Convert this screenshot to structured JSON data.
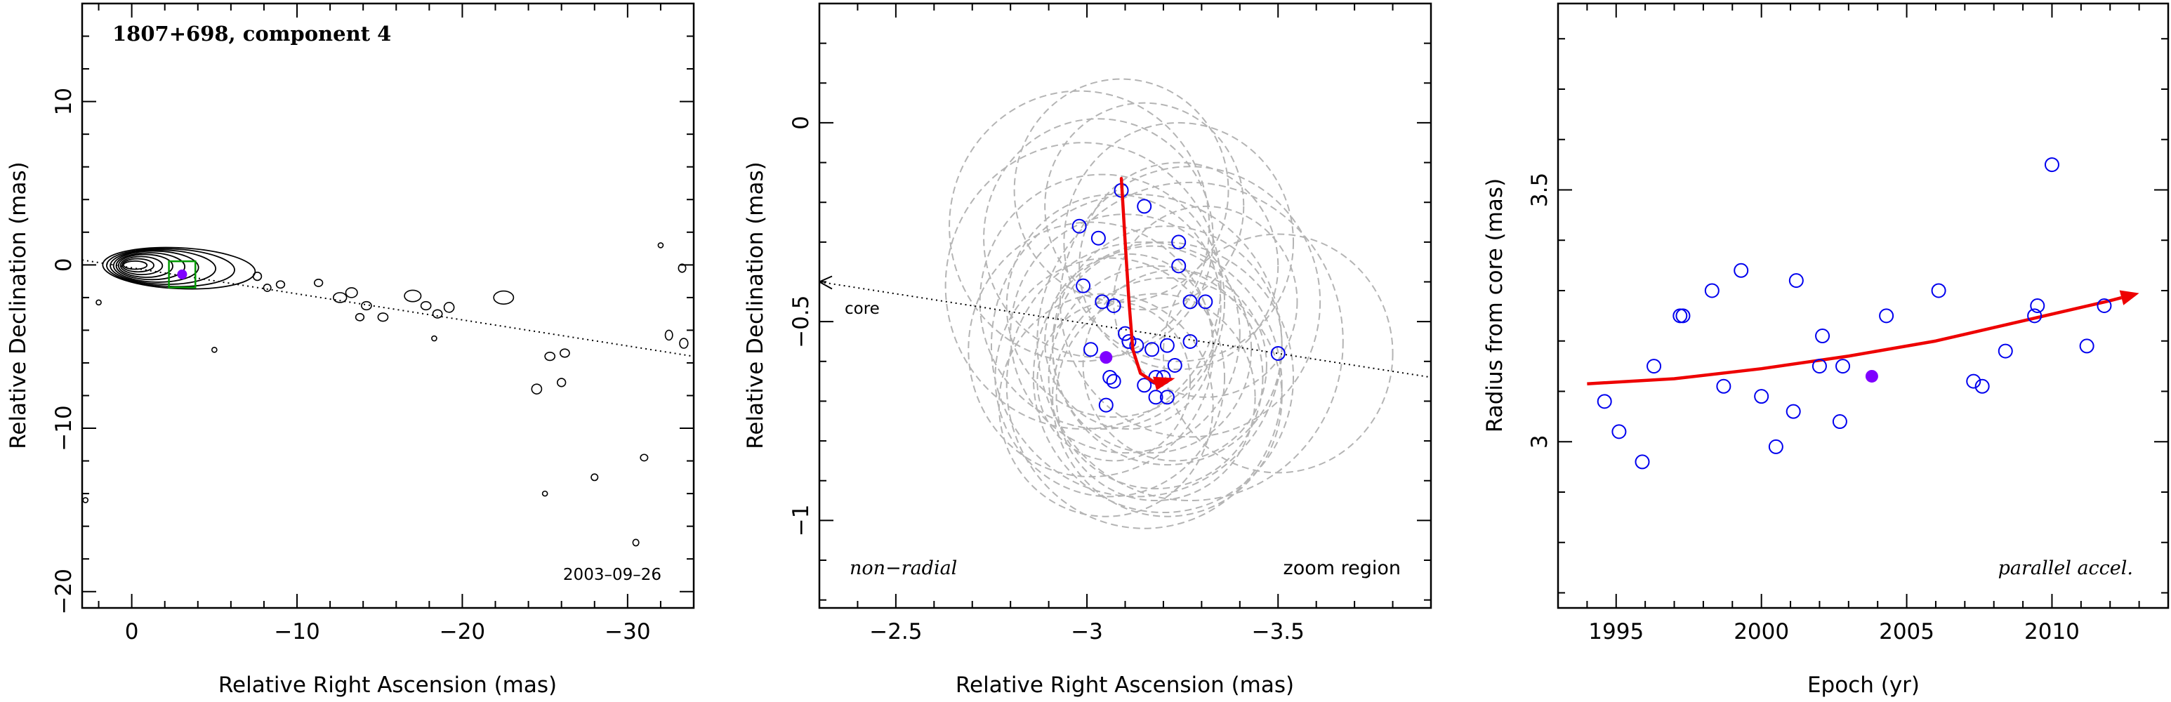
{
  "chart_data": [
    {
      "type": "contour",
      "title": "1807+698, component 4",
      "date_label": "2003–09–26",
      "xlabel": "Relative Right Ascension (mas)",
      "ylabel": "Relative Declination (mas)",
      "xlim": [
        3,
        -34
      ],
      "ylim": [
        -21,
        16
      ],
      "xticks": [
        0,
        -10,
        -20,
        -30
      ],
      "yticks": [
        -20,
        -10,
        0,
        10
      ],
      "tick_labels_x": [
        "0",
        "−10",
        "−20",
        "−30"
      ],
      "tick_labels_y": [
        "−20",
        "−10",
        "0",
        "10"
      ],
      "jet_axis": [
        [
          3,
          0.3
        ],
        [
          -34,
          -5.6
        ]
      ],
      "component": {
        "x": -3.05,
        "y": -0.58
      },
      "colors": {
        "contour": "#000000",
        "box": "#009900",
        "component": "#7f00ff",
        "axis_line": "#000000"
      }
    },
    {
      "type": "scatter",
      "xlabel": "Relative Right Ascension (mas)",
      "ylabel": "Relative Declination (mas)",
      "xlim": [
        -2.3,
        -3.9
      ],
      "ylim": [
        -1.22,
        0.3
      ],
      "xticks": [
        -2.5,
        -3,
        -3.5
      ],
      "yticks": [
        -1,
        -0.5,
        0
      ],
      "tick_labels_x": [
        "−2.5",
        "−3",
        "−3.5"
      ],
      "tick_labels_y": [
        "−1",
        "−0.5",
        "0"
      ],
      "label_core": "core",
      "label_motion": "non−radial",
      "label_region": "zoom region",
      "core_axis": [
        [
          -2.3,
          -0.4
        ],
        [
          -3.9,
          -0.64
        ]
      ],
      "mean_position": {
        "x": -3.05,
        "y": -0.59
      },
      "points": [
        {
          "x": -2.98,
          "y": -0.26
        },
        {
          "x": -3.03,
          "y": -0.29
        },
        {
          "x": -3.09,
          "y": -0.17
        },
        {
          "x": -3.15,
          "y": -0.21
        },
        {
          "x": -3.24,
          "y": -0.3
        },
        {
          "x": -3.24,
          "y": -0.36
        },
        {
          "x": -2.99,
          "y": -0.41
        },
        {
          "x": -3.04,
          "y": -0.45
        },
        {
          "x": -3.07,
          "y": -0.46
        },
        {
          "x": -3.27,
          "y": -0.45
        },
        {
          "x": -3.31,
          "y": -0.45
        },
        {
          "x": -3.1,
          "y": -0.53
        },
        {
          "x": -3.11,
          "y": -0.55
        },
        {
          "x": -3.13,
          "y": -0.56
        },
        {
          "x": -3.17,
          "y": -0.57
        },
        {
          "x": -3.21,
          "y": -0.56
        },
        {
          "x": -3.27,
          "y": -0.55
        },
        {
          "x": -3.01,
          "y": -0.57
        },
        {
          "x": -3.18,
          "y": -0.64
        },
        {
          "x": -3.2,
          "y": -0.64
        },
        {
          "x": -3.23,
          "y": -0.61
        },
        {
          "x": -3.06,
          "y": -0.64
        },
        {
          "x": -3.07,
          "y": -0.65
        },
        {
          "x": -3.15,
          "y": -0.66
        },
        {
          "x": -3.18,
          "y": -0.69
        },
        {
          "x": -3.21,
          "y": -0.69
        },
        {
          "x": -3.05,
          "y": -0.71
        },
        {
          "x": -3.5,
          "y": -0.58
        }
      ],
      "error_circles": [
        {
          "x": -2.98,
          "y": -0.26,
          "r": 0.34
        },
        {
          "x": -3.03,
          "y": -0.29,
          "r": 0.3
        },
        {
          "x": -3.09,
          "y": -0.17,
          "r": 0.28
        },
        {
          "x": -3.15,
          "y": -0.21,
          "r": 0.26
        },
        {
          "x": -3.24,
          "y": -0.3,
          "r": 0.3
        },
        {
          "x": -3.24,
          "y": -0.36,
          "r": 0.26
        },
        {
          "x": -2.99,
          "y": -0.41,
          "r": 0.36
        },
        {
          "x": -3.04,
          "y": -0.45,
          "r": 0.32
        },
        {
          "x": -3.07,
          "y": -0.46,
          "r": 0.28
        },
        {
          "x": -3.27,
          "y": -0.45,
          "r": 0.34
        },
        {
          "x": -3.31,
          "y": -0.45,
          "r": 0.24
        },
        {
          "x": -3.1,
          "y": -0.53,
          "r": 0.3
        },
        {
          "x": -3.11,
          "y": -0.55,
          "r": 0.22
        },
        {
          "x": -3.13,
          "y": -0.56,
          "r": 0.38
        },
        {
          "x": -3.17,
          "y": -0.57,
          "r": 0.26
        },
        {
          "x": -3.21,
          "y": -0.56,
          "r": 0.3
        },
        {
          "x": -3.27,
          "y": -0.55,
          "r": 0.4
        },
        {
          "x": -3.01,
          "y": -0.57,
          "r": 0.32
        },
        {
          "x": -3.18,
          "y": -0.64,
          "r": 0.28
        },
        {
          "x": -3.2,
          "y": -0.64,
          "r": 0.34
        },
        {
          "x": -3.23,
          "y": -0.61,
          "r": 0.24
        },
        {
          "x": -3.06,
          "y": -0.64,
          "r": 0.3
        },
        {
          "x": -3.07,
          "y": -0.65,
          "r": 0.2
        },
        {
          "x": -3.15,
          "y": -0.66,
          "r": 0.36
        },
        {
          "x": -3.18,
          "y": -0.69,
          "r": 0.26
        },
        {
          "x": -3.21,
          "y": -0.69,
          "r": 0.3
        },
        {
          "x": -3.05,
          "y": -0.71,
          "r": 0.28
        },
        {
          "x": -3.5,
          "y": -0.58,
          "r": 0.3
        }
      ],
      "track": [
        {
          "x": -3.09,
          "y": -0.14
        },
        {
          "x": -3.1,
          "y": -0.3
        },
        {
          "x": -3.11,
          "y": -0.45
        },
        {
          "x": -3.12,
          "y": -0.57
        },
        {
          "x": -3.14,
          "y": -0.63
        },
        {
          "x": -3.18,
          "y": -0.655
        },
        {
          "x": -3.22,
          "y": -0.645
        }
      ],
      "colors": {
        "points": "#0000ee",
        "circles": "#b4b4b4",
        "track": "#ee0000",
        "mean": "#7f00ff"
      }
    },
    {
      "type": "scatter",
      "xlabel": "Epoch (yr)",
      "ylabel": "Radius from core (mas)",
      "label_fit": "parallel accel.",
      "xlim": [
        1993,
        2014
      ],
      "ylim": [
        2.67,
        3.87
      ],
      "xticks": [
        1995,
        2000,
        2005,
        2010
      ],
      "yticks": [
        3,
        3.5
      ],
      "tick_labels_x": [
        "1995",
        "2000",
        "2005",
        "2010"
      ],
      "tick_labels_y": [
        "3",
        "3.5"
      ],
      "points": [
        {
          "x": 1994.6,
          "y": 3.08
        },
        {
          "x": 1995.1,
          "y": 3.02
        },
        {
          "x": 1995.9,
          "y": 2.96
        },
        {
          "x": 1996.3,
          "y": 3.15
        },
        {
          "x": 1997.2,
          "y": 3.25
        },
        {
          "x": 1997.3,
          "y": 3.25
        },
        {
          "x": 1998.3,
          "y": 3.3
        },
        {
          "x": 1998.7,
          "y": 3.11
        },
        {
          "x": 1999.3,
          "y": 3.34
        },
        {
          "x": 2000.0,
          "y": 3.09
        },
        {
          "x": 2000.5,
          "y": 2.99
        },
        {
          "x": 2001.1,
          "y": 3.06
        },
        {
          "x": 2001.2,
          "y": 3.32
        },
        {
          "x": 2002.0,
          "y": 3.15
        },
        {
          "x": 2002.1,
          "y": 3.21
        },
        {
          "x": 2002.7,
          "y": 3.04
        },
        {
          "x": 2002.8,
          "y": 3.15
        },
        {
          "x": 2004.3,
          "y": 3.25
        },
        {
          "x": 2006.1,
          "y": 3.3
        },
        {
          "x": 2007.3,
          "y": 3.12
        },
        {
          "x": 2007.6,
          "y": 3.11
        },
        {
          "x": 2008.4,
          "y": 3.18
        },
        {
          "x": 2009.4,
          "y": 3.25
        },
        {
          "x": 2009.5,
          "y": 3.27
        },
        {
          "x": 2010.0,
          "y": 3.55
        },
        {
          "x": 2011.2,
          "y": 3.19
        },
        {
          "x": 2011.8,
          "y": 3.27
        }
      ],
      "mean_point": {
        "x": 2003.8,
        "y": 3.13
      },
      "fit": [
        {
          "x": 1994.0,
          "y": 3.115
        },
        {
          "x": 1997.0,
          "y": 3.125
        },
        {
          "x": 2000.0,
          "y": 3.145
        },
        {
          "x": 2003.0,
          "y": 3.17
        },
        {
          "x": 2006.0,
          "y": 3.2
        },
        {
          "x": 2009.0,
          "y": 3.24
        },
        {
          "x": 2012.0,
          "y": 3.28
        },
        {
          "x": 2013.0,
          "y": 3.295
        }
      ],
      "colors": {
        "points": "#0000ee",
        "fit": "#ee0000",
        "mean": "#7f00ff"
      }
    }
  ]
}
